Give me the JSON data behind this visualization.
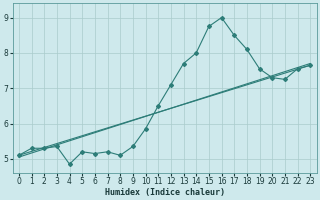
{
  "xlabel": "Humidex (Indice chaleur)",
  "xlim": [
    -0.5,
    23.5
  ],
  "ylim": [
    4.6,
    9.4
  ],
  "yticks": [
    5,
    6,
    7,
    8,
    9
  ],
  "xticks": [
    0,
    1,
    2,
    3,
    4,
    5,
    6,
    7,
    8,
    9,
    10,
    11,
    12,
    13,
    14,
    15,
    16,
    17,
    18,
    19,
    20,
    21,
    22,
    23
  ],
  "bg_color": "#cee9ec",
  "line_color": "#2d7d78",
  "grid_color": "#aacccc",
  "line1": {
    "x": [
      0,
      1,
      2,
      3,
      4,
      5,
      6,
      7,
      8,
      9,
      10,
      11,
      12,
      13,
      14,
      15,
      16,
      17,
      18,
      19,
      20,
      21,
      22,
      23
    ],
    "y": [
      5.1,
      5.3,
      5.3,
      5.35,
      4.85,
      5.2,
      5.15,
      5.2,
      5.1,
      5.35,
      5.85,
      6.5,
      7.1,
      7.7,
      8.0,
      8.75,
      9.0,
      8.5,
      8.1,
      7.55,
      7.3,
      7.25,
      7.55,
      7.65
    ]
  },
  "line2": {
    "x": [
      0,
      23
    ],
    "y": [
      5.1,
      7.65
    ]
  },
  "line3": {
    "x": [
      0,
      23
    ],
    "y": [
      5.1,
      7.65
    ]
  }
}
